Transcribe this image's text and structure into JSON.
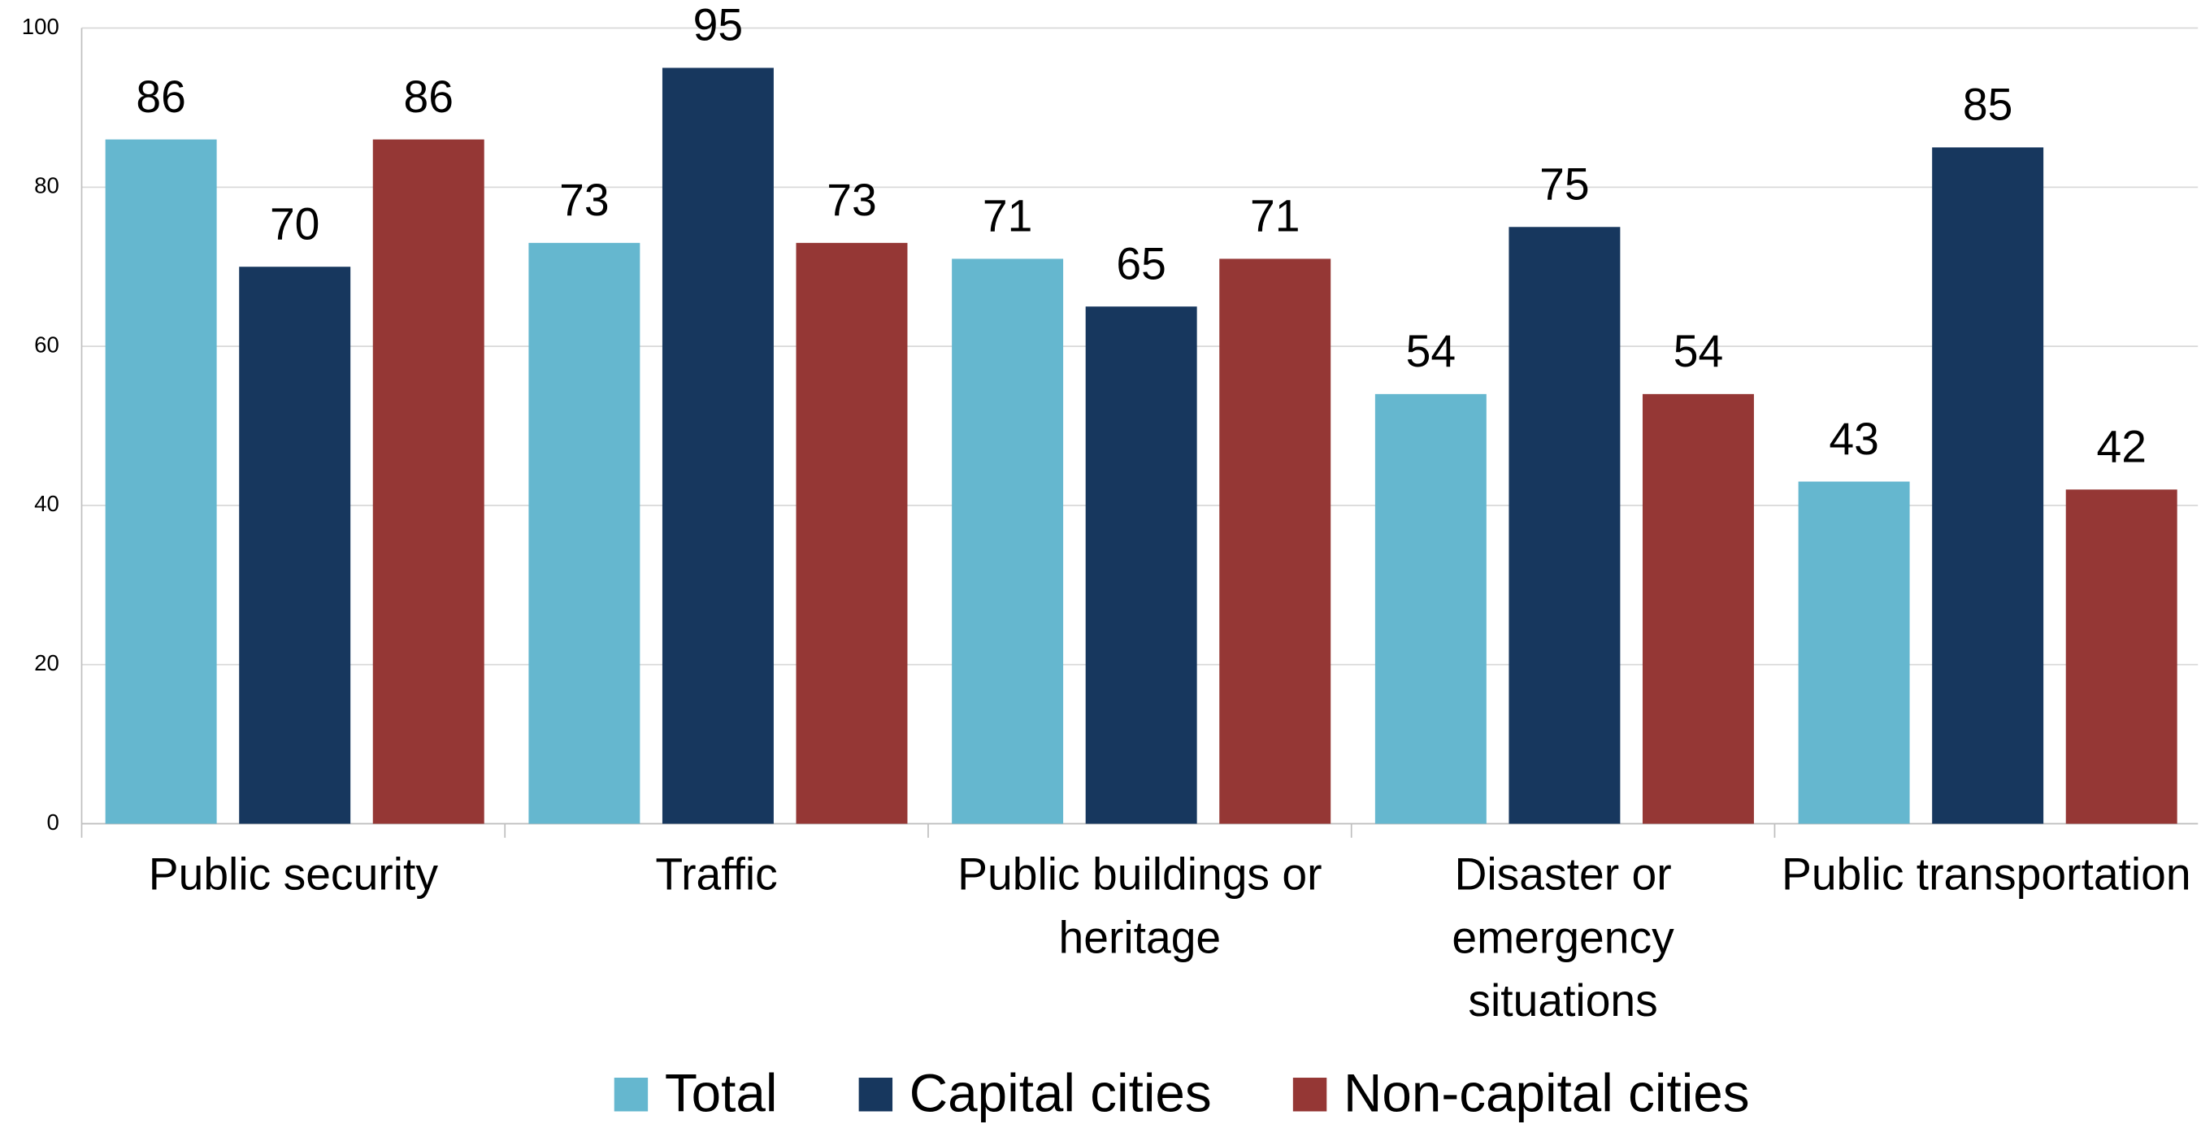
{
  "chart_data": {
    "type": "bar",
    "categories": [
      "Public security",
      "Traffic",
      "Public buildings or heritage",
      "Disaster or emergency situations",
      "Public transportation"
    ],
    "series": [
      {
        "name": "Total",
        "color": "#65b7cf",
        "values": [
          86,
          73,
          71,
          54,
          43
        ]
      },
      {
        "name": "Capital cities",
        "color": "#17375e",
        "values": [
          70,
          95,
          65,
          75,
          85
        ]
      },
      {
        "name": "Non-capital cities",
        "color": "#953735",
        "values": [
          86,
          73,
          71,
          54,
          42
        ]
      }
    ],
    "ylim": [
      0,
      100
    ],
    "yticks": [
      0,
      20,
      40,
      60,
      80,
      100
    ],
    "grid": true,
    "legend": "bottom"
  }
}
